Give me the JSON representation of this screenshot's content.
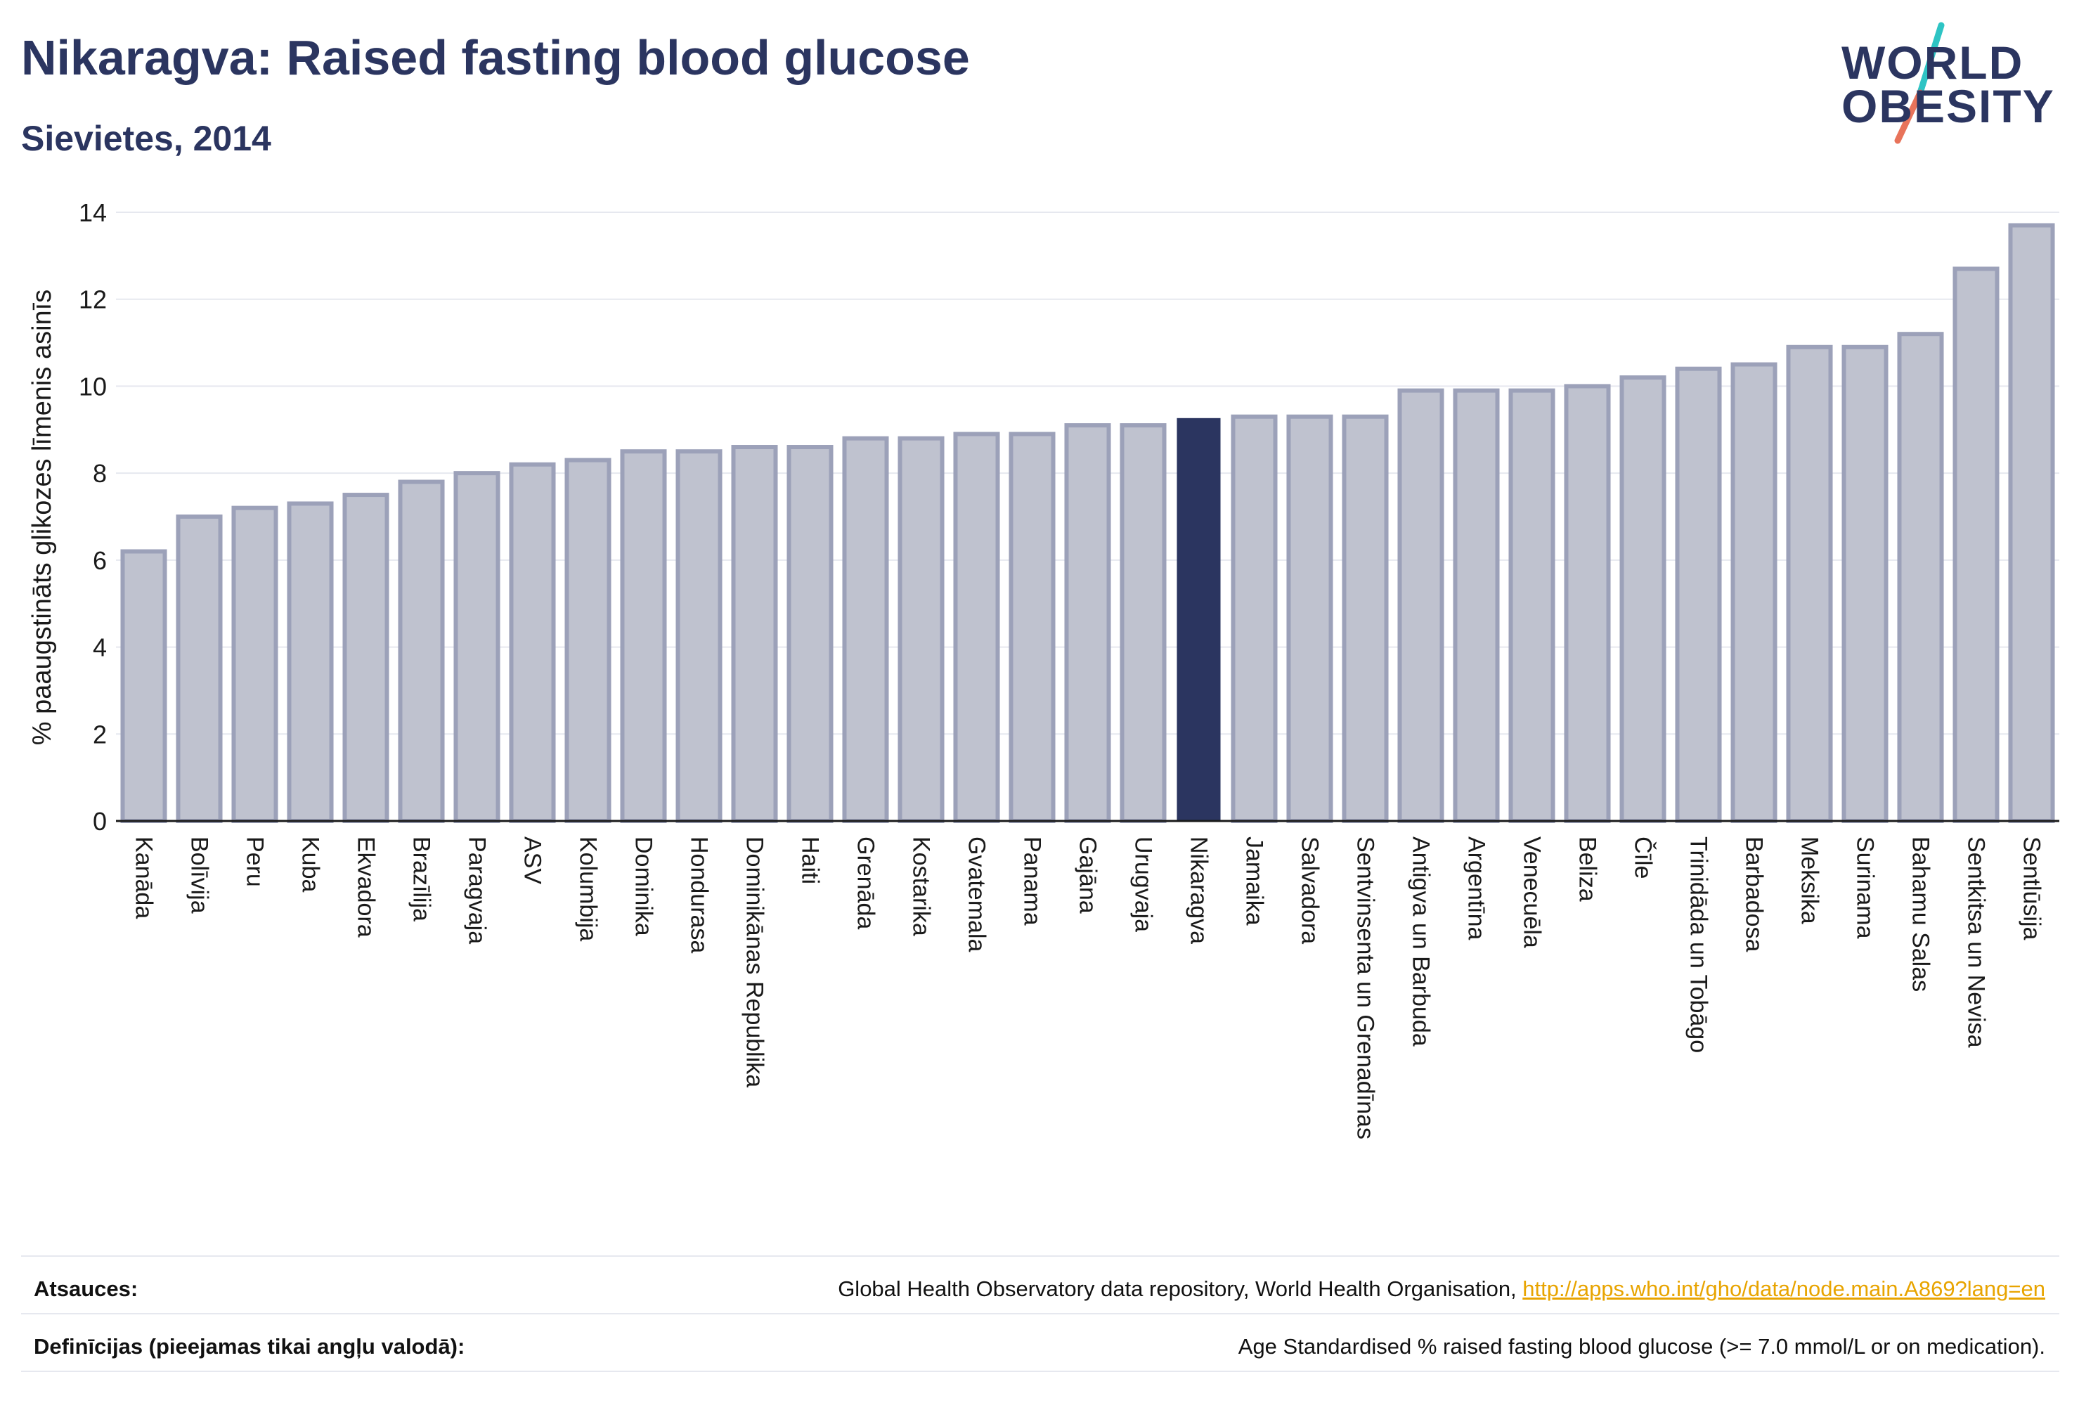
{
  "header": {
    "title": "Nikaragva: Raised fasting blood glucose",
    "subtitle": "Sievietes, 2014"
  },
  "logo": {
    "line1": "WORLD",
    "line2": "OBESITY",
    "slash_colors": [
      "#2ec4c4",
      "#e8735a"
    ]
  },
  "chart_data": {
    "type": "bar",
    "ylabel": "% paaugstināts glikozes līmenis asinīs",
    "xlabel": "",
    "ylim": [
      0,
      14
    ],
    "yticks": [
      0,
      2,
      4,
      6,
      8,
      10,
      12,
      14
    ],
    "grid": true,
    "highlight": "Nikaragva",
    "colors": {
      "bar_fill": "#bfc2cf",
      "bar_stroke": "#9ca1b9",
      "highlight_fill": "#2b3560",
      "grid": "#e6e8ef"
    },
    "categories": [
      "Kanāda",
      "Bolīvija",
      "Peru",
      "Kuba",
      "Ekvadora",
      "Brazīlija",
      "Paragvaja",
      "ASV",
      "Kolumbija",
      "Dominika",
      "Hondurasa",
      "Dominikānas Republika",
      "Haiti",
      "Grenāda",
      "Kostarika",
      "Gvatemala",
      "Panama",
      "Gajāna",
      "Urugvaja",
      "Nikaragva",
      "Jamaika",
      "Salvadora",
      "Sentvinsenta un Grenadīnas",
      "Antigva un Barbuda",
      "Argentīna",
      "Venecuēla",
      "Beliza",
      "Čīle",
      "Trinidāda un Tobāgo",
      "Barbadosa",
      "Meksika",
      "Surinama",
      "Bahamu Salas",
      "Sentkitsa un Nevisa",
      "Sentlūsija"
    ],
    "values": [
      6.2,
      7.0,
      7.2,
      7.3,
      7.5,
      7.8,
      8.0,
      8.2,
      8.3,
      8.5,
      8.5,
      8.6,
      8.6,
      8.8,
      8.8,
      8.9,
      8.9,
      9.1,
      9.1,
      9.25,
      9.3,
      9.3,
      9.3,
      9.9,
      9.9,
      9.9,
      10.0,
      10.2,
      10.4,
      10.5,
      10.9,
      10.9,
      11.2,
      12.7,
      13.7
    ]
  },
  "footer": {
    "sources_label": "Atsauces:",
    "sources_text": "Global Health Observatory data repository, World Health Organisation, ",
    "sources_link": "http://apps.who.int/gho/data/node.main.A869?lang=en",
    "definitions_label": "Definīcijas (pieejamas tikai angļu valodā):",
    "definitions_text": "Age Standardised % raised fasting blood glucose (>= 7.0 mmol/L or on medication)."
  }
}
